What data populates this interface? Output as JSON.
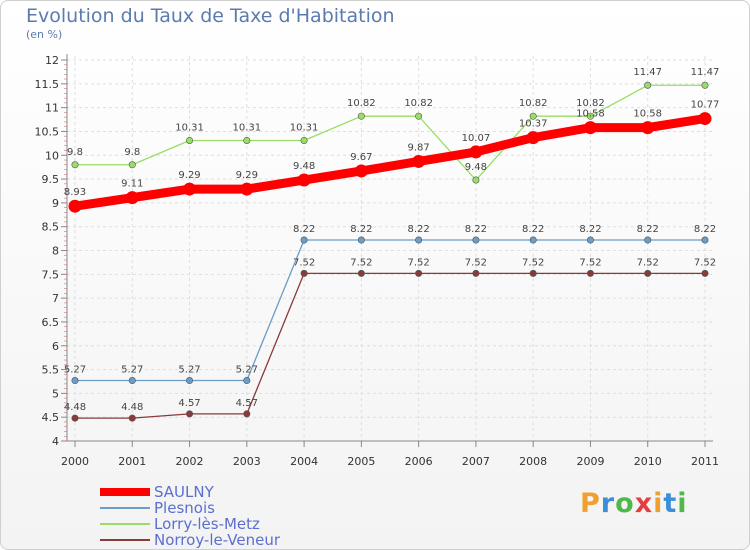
{
  "title": "Evolution du Taux de Taxe d'Habitation",
  "subtitle": "(en %)",
  "logo": {
    "text": "Proxiti",
    "colors": [
      "#f0a030",
      "#3a8fd8",
      "#50b848",
      "#e04040",
      "#f0a030",
      "#3a8fd8",
      "#50b848"
    ]
  },
  "chart_data": {
    "type": "line",
    "x": [
      "2000",
      "2001",
      "2002",
      "2003",
      "2004",
      "2005",
      "2006",
      "2007",
      "2008",
      "2009",
      "2010",
      "2011"
    ],
    "yticks": [
      "4",
      "4.5",
      "5",
      "5.5",
      "6",
      "6.5",
      "7",
      "7.5",
      "8",
      "8.5",
      "9",
      "9.5",
      "10",
      "10.5",
      "11",
      "11.5",
      "12"
    ],
    "ylim": [
      4,
      12
    ],
    "grid": true,
    "legend": "bottom-left",
    "series": [
      {
        "name": "SAULNY",
        "color": "#ff0000",
        "values": [
          8.93,
          9.11,
          9.29,
          9.29,
          9.48,
          9.67,
          9.87,
          10.07,
          10.37,
          10.58,
          10.58,
          10.77
        ],
        "labels": [
          "8.93",
          "9.11",
          "9.29",
          "9.29",
          "9.48",
          "9.67",
          "9.87",
          "10.07",
          "10.37",
          "10.58",
          "10.58",
          "10.77"
        ]
      },
      {
        "name": "Plesnois",
        "color": "#6b9dc8",
        "values": [
          5.27,
          5.27,
          5.27,
          5.27,
          8.22,
          8.22,
          8.22,
          8.22,
          8.22,
          8.22,
          8.22,
          8.22
        ],
        "labels": [
          "5.27",
          "5.27",
          "5.27",
          "5.27",
          "8.22",
          "8.22",
          "8.22",
          "8.22",
          "8.22",
          "8.22",
          "8.22",
          "8.22"
        ]
      },
      {
        "name": "Lorry-lès-Metz",
        "color": "#99dd66",
        "values": [
          9.8,
          9.8,
          10.31,
          10.31,
          10.31,
          10.82,
          10.82,
          9.48,
          10.82,
          10.82,
          11.47,
          11.47
        ],
        "labels": [
          "9.8",
          "9.8",
          "10.31",
          "10.31",
          "10.31",
          "10.82",
          "10.82",
          "9.48",
          "10.82",
          "10.82",
          "11.47",
          "11.47"
        ]
      },
      {
        "name": "Norroy-le-Veneur",
        "color": "#8b3a3a",
        "values": [
          4.48,
          4.48,
          4.57,
          4.57,
          7.52,
          7.52,
          7.52,
          7.52,
          7.52,
          7.52,
          7.52,
          7.52
        ],
        "labels": [
          "4.48",
          "4.48",
          "4.57",
          "4.57",
          "7.52",
          "7.52",
          "7.52",
          "7.52",
          "7.52",
          "7.52",
          "7.52",
          "7.52"
        ]
      }
    ]
  }
}
